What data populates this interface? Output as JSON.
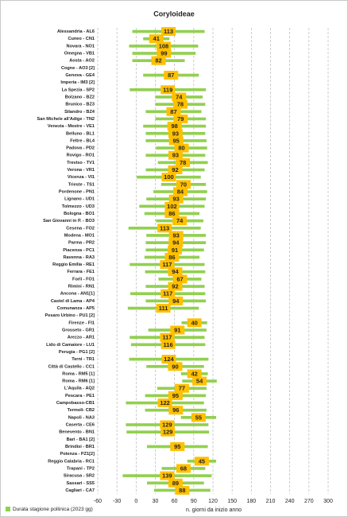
{
  "chart_data": {
    "type": "bar",
    "orientation": "horizontal",
    "stacked": true,
    "title": "Coryloideae",
    "x_label": "n. giorni da inizio anno",
    "categories": [
      "Alessandria - AL6",
      "Cuneo - CN1",
      "Novara - NO1",
      "Omegna - VB1",
      "Aosta - AO2",
      "Cogne - AO3 [2]",
      "Genova - GE4",
      "Imperia - IM3 [2]",
      "La Spezia - SP2",
      "Bolzano - BZ2",
      "Brunico - BZ3",
      "Silandro - BZ4",
      "San Michele all'Adige - TN2",
      "Venezia - Mestre - VE1",
      "Belluno - BL1",
      "Feltre - BL4",
      "Padova - PD2",
      "Rovigo - RO1",
      "Treviso - TV1",
      "Verona - VR1",
      "Vicenza - VI1",
      "Trieste - TS1",
      "Pordenone - PN1",
      "Lignano - UD1",
      "Tolmezzo - UD3",
      "Bologna - BO1",
      "San Giovanni in P. - BO3",
      "Cesena - FO2",
      "Modena - MO1",
      "Parma - PR2",
      "Piacenza - PC1",
      "Ravenna - RA3",
      "Reggio Emilia - RE1",
      "Ferrara - FE1",
      "Forlì - FO1",
      "Rimini - RN1",
      "Ancona - AN1[1]",
      "Castel di Lama - AP4",
      "Comunanza - AP5",
      "Pesaro Urbino - PU1 [2]",
      "Firenze - FI1",
      "Grosseto - GR1",
      "Arezzo - AR1",
      "Lido di Camaiore - LU1",
      "Perugia - PG1 [2]",
      "Terni - TR1",
      "Città di Castello - CC1",
      "Roma - RM5 [1]",
      "Roma - RM6 [1]",
      "L'Aquila - AQ2",
      "Pescara - PE1",
      "Campobasso-CB1",
      "Termoli- CB2",
      "Napoli - NA3",
      "Caserta - CE6",
      "Benevento - BN1",
      "Bari - BA1 [2]",
      "Brindisi - BR1",
      "Potenza - PZ1[2]",
      "Reggio Calabria - RC1",
      "Trapani - TP2",
      "Siracusa - SR2",
      "Sassari - SS5",
      "Cagliari - CA7"
    ],
    "series": [
      {
        "color": "none",
        "values": [
          -6,
          11,
          -11,
          -6,
          -6,
          null,
          11,
          null,
          -10,
          30,
          30,
          15,
          30,
          11,
          15,
          15,
          31,
          15,
          34,
          15,
          1,
          39,
          27,
          16,
          5,
          13,
          31,
          -12,
          16,
          15,
          15,
          13,
          -10,
          14,
          35,
          15,
          -9,
          15,
          -13,
          null,
          71,
          19,
          -10,
          -8,
          null,
          -11,
          16,
          70,
          72,
          33,
          14,
          -16,
          14,
          70,
          -16,
          -15,
          null,
          17,
          null,
          80,
          40,
          -21,
          17,
          28
        ]
      },
      {
        "name": "Durata stagione pollinica (2023 gg)",
        "color": "#92d050",
        "label_color": "#ffc000",
        "values": [
          113,
          41,
          108,
          99,
          82,
          null,
          87,
          null,
          119,
          74,
          78,
          87,
          79,
          98,
          93,
          95,
          80,
          93,
          78,
          92,
          100,
          70,
          84,
          93,
          102,
          86,
          74,
          113,
          93,
          94,
          91,
          86,
          117,
          94,
          67,
          92,
          117,
          94,
          111,
          null,
          40,
          91,
          117,
          116,
          null,
          124,
          90,
          42,
          54,
          77,
          95,
          122,
          96,
          55,
          129,
          129,
          null,
          95,
          null,
          45,
          68,
          139,
          89,
          88
        ]
      }
    ],
    "xlim": [
      -60,
      300
    ],
    "xticks": [
      -60,
      -30,
      0,
      30,
      60,
      90,
      120,
      150,
      180,
      210,
      240,
      270,
      300
    ],
    "grid": true,
    "legend": "bottom-left"
  }
}
